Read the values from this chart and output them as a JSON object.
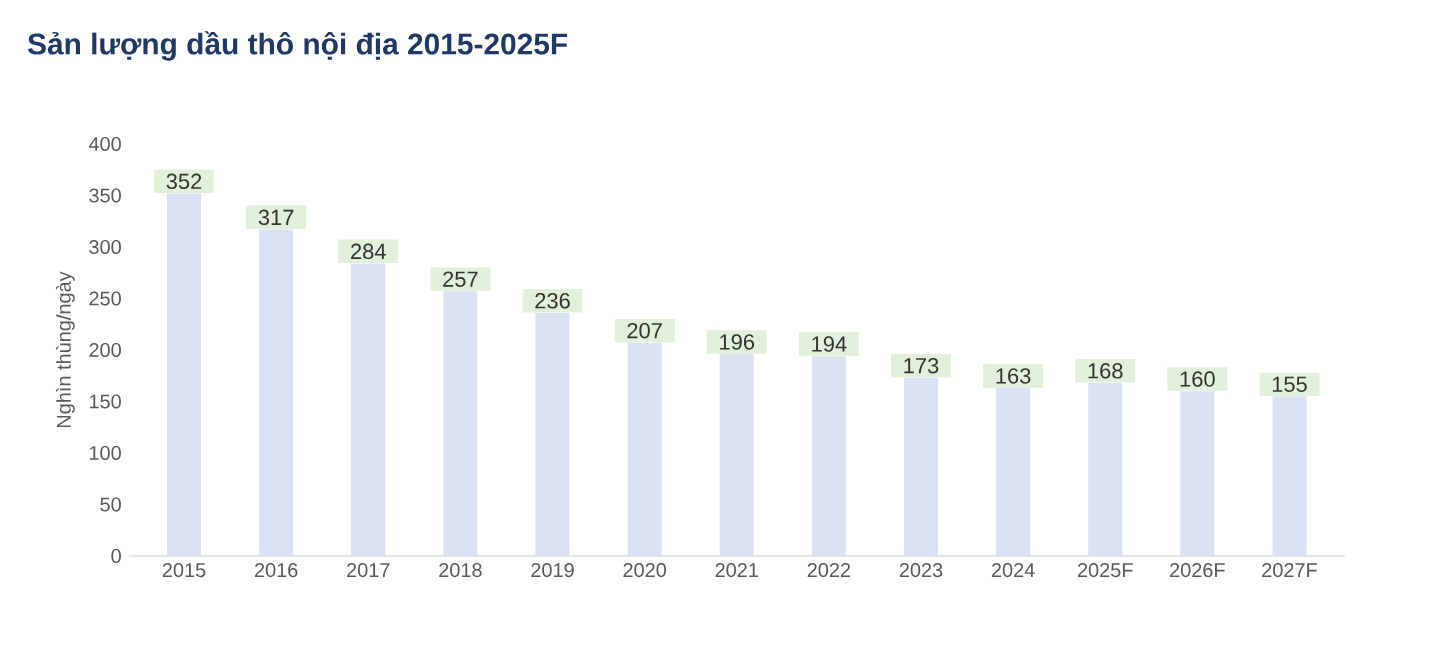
{
  "chart_data": {
    "type": "bar",
    "title": "Sản lượng dầu thô nội địa 2015-2025F",
    "ylabel": "Nghìn thùng/ngày",
    "categories": [
      "2015",
      "2016",
      "2017",
      "2018",
      "2019",
      "2020",
      "2021",
      "2022",
      "2023",
      "2024",
      "2025F",
      "2026F",
      "2027F"
    ],
    "values": [
      352,
      317,
      284,
      257,
      236,
      207,
      196,
      194,
      173,
      163,
      168,
      160,
      155
    ],
    "color": "#d9e1f2",
    "ylim": [
      0,
      400
    ],
    "yticks": [
      0,
      50,
      100,
      150,
      200,
      250,
      300,
      350,
      400
    ],
    "grid": false,
    "data_labels": true
  }
}
